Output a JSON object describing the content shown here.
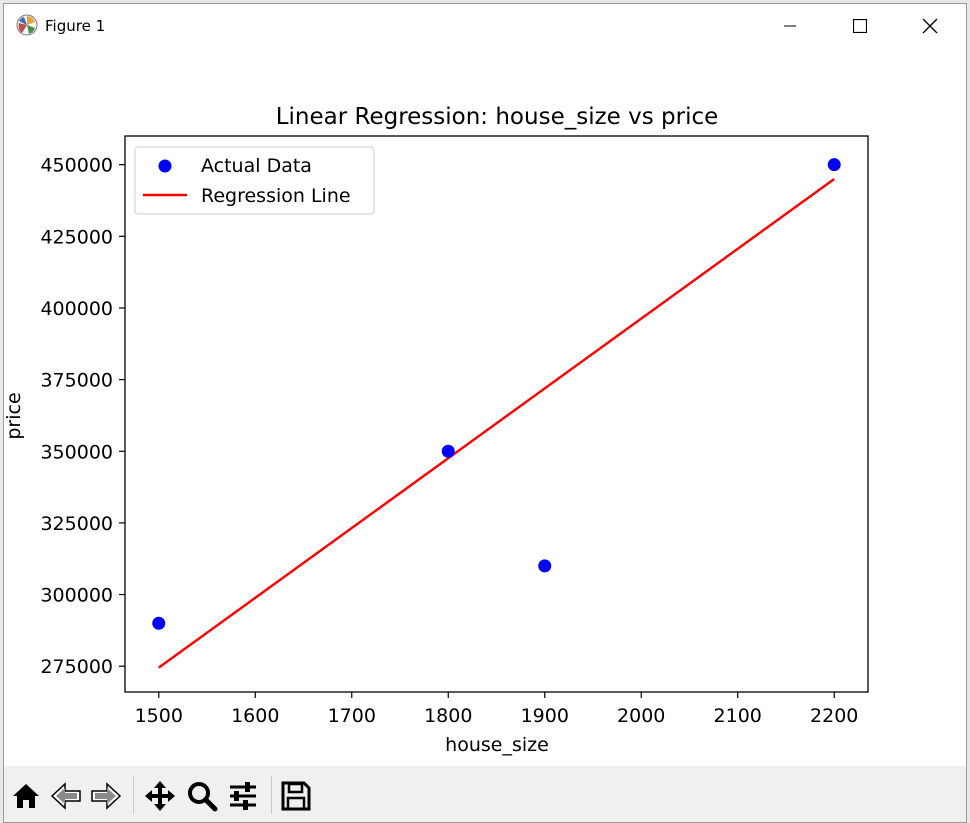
{
  "window": {
    "title": "Figure 1"
  },
  "toolbar": {
    "buttons": [
      {
        "icon": "home-icon"
      },
      {
        "icon": "back-arrow-icon"
      },
      {
        "icon": "forward-arrow-icon"
      },
      {
        "icon": "pan-icon"
      },
      {
        "icon": "zoom-icon"
      },
      {
        "icon": "configure-subplots-icon"
      },
      {
        "icon": "save-icon"
      }
    ]
  },
  "chart_data": {
    "type": "scatter",
    "title": "Linear Regression: house_size vs price",
    "xlabel": "house_size",
    "ylabel": "price",
    "xlim": [
      1465,
      2235
    ],
    "ylim": [
      266000,
      460000
    ],
    "xticks": [
      1500,
      1600,
      1700,
      1800,
      1900,
      2000,
      2100,
      2200
    ],
    "yticks": [
      275000,
      300000,
      325000,
      350000,
      375000,
      400000,
      425000,
      450000
    ],
    "legend_position": "top-left",
    "grid": false,
    "series": [
      {
        "name": "Actual Data",
        "kind": "scatter",
        "color": "#0000ff",
        "points": [
          {
            "x": 1500,
            "y": 290000
          },
          {
            "x": 1800,
            "y": 350000
          },
          {
            "x": 1900,
            "y": 310000
          },
          {
            "x": 2200,
            "y": 450000
          }
        ]
      },
      {
        "name": "Regression Line",
        "kind": "line",
        "color": "#ff0000",
        "points": [
          {
            "x": 1500,
            "y": 274500
          },
          {
            "x": 2200,
            "y": 445000
          }
        ]
      }
    ]
  }
}
